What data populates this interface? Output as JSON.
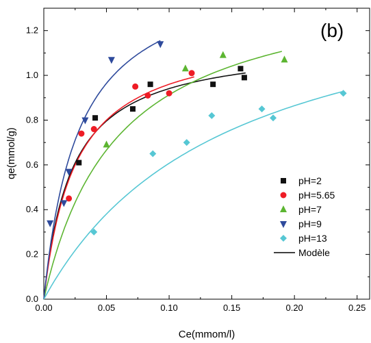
{
  "chart_data": {
    "type": "scatter",
    "panel_label": "(b)",
    "xlabel": "Ce(mmom/l)",
    "ylabel": "qe(mmol/g)",
    "xlim": [
      0,
      0.26
    ],
    "ylim": [
      0,
      1.3
    ],
    "xticks": [
      0.0,
      0.05,
      0.1,
      0.15,
      0.2,
      0.25
    ],
    "xtick_labels": [
      "0.00",
      "0.05",
      "0.10",
      "0.15",
      "0.20",
      "0.25"
    ],
    "yticks": [
      0.0,
      0.2,
      0.4,
      0.6,
      0.8,
      1.0,
      1.2
    ],
    "ytick_labels": [
      "0.0",
      "0.2",
      "0.4",
      "0.6",
      "0.8",
      "1.0",
      "1.2"
    ],
    "grid": false,
    "legend_position": "right",
    "series": [
      {
        "name": "pH=2",
        "marker": "square",
        "color": "#111111",
        "points": [
          [
            0.028,
            0.61
          ],
          [
            0.041,
            0.81
          ],
          [
            0.071,
            0.85
          ],
          [
            0.085,
            0.96
          ],
          [
            0.135,
            0.96
          ],
          [
            0.157,
            1.03
          ],
          [
            0.16,
            0.99
          ]
        ]
      },
      {
        "name": "pH=5.65",
        "marker": "circle",
        "color": "#ee1c25",
        "points": [
          [
            0.02,
            0.45
          ],
          [
            0.03,
            0.74
          ],
          [
            0.04,
            0.76
          ],
          [
            0.073,
            0.95
          ],
          [
            0.083,
            0.91
          ],
          [
            0.1,
            0.92
          ],
          [
            0.118,
            1.01
          ]
        ]
      },
      {
        "name": "pH=7",
        "marker": "triangle-up",
        "color": "#5cb531",
        "points": [
          [
            0.05,
            0.69
          ],
          [
            0.113,
            1.03
          ],
          [
            0.143,
            1.09
          ],
          [
            0.192,
            1.07
          ]
        ]
      },
      {
        "name": "pH=9",
        "marker": "triangle-down",
        "color": "#2e4a9c",
        "points": [
          [
            0.005,
            0.34
          ],
          [
            0.016,
            0.43
          ],
          [
            0.02,
            0.57
          ],
          [
            0.033,
            0.8
          ],
          [
            0.054,
            1.07
          ],
          [
            0.093,
            1.14
          ]
        ]
      },
      {
        "name": "pH=13",
        "marker": "diamond",
        "color": "#56c7d4",
        "points": [
          [
            0.04,
            0.3
          ],
          [
            0.087,
            0.65
          ],
          [
            0.114,
            0.7
          ],
          [
            0.134,
            0.82
          ],
          [
            0.174,
            0.85
          ],
          [
            0.183,
            0.81
          ],
          [
            0.239,
            0.92
          ]
        ]
      }
    ],
    "model_curves": [
      {
        "series": "pH=2",
        "color": "#111111",
        "qmax": 1.15,
        "K": 45,
        "xmax": 0.161
      },
      {
        "series": "pH=5.65",
        "color": "#ee1c25",
        "qmax": 1.2,
        "K": 40,
        "xmax": 0.12
      },
      {
        "series": "pH=7",
        "color": "#5cb531",
        "qmax": 1.45,
        "K": 17,
        "xmax": 0.19
      },
      {
        "series": "pH=9",
        "color": "#2e4a9c",
        "qmax": 1.5,
        "K": 36,
        "xmax": 0.093
      },
      {
        "series": "pH=13",
        "color": "#56c7d4",
        "qmax": 1.5,
        "K": 6.8,
        "xmax": 0.238
      }
    ],
    "model_legend": {
      "name": "Modèle",
      "color": "#000000"
    }
  }
}
